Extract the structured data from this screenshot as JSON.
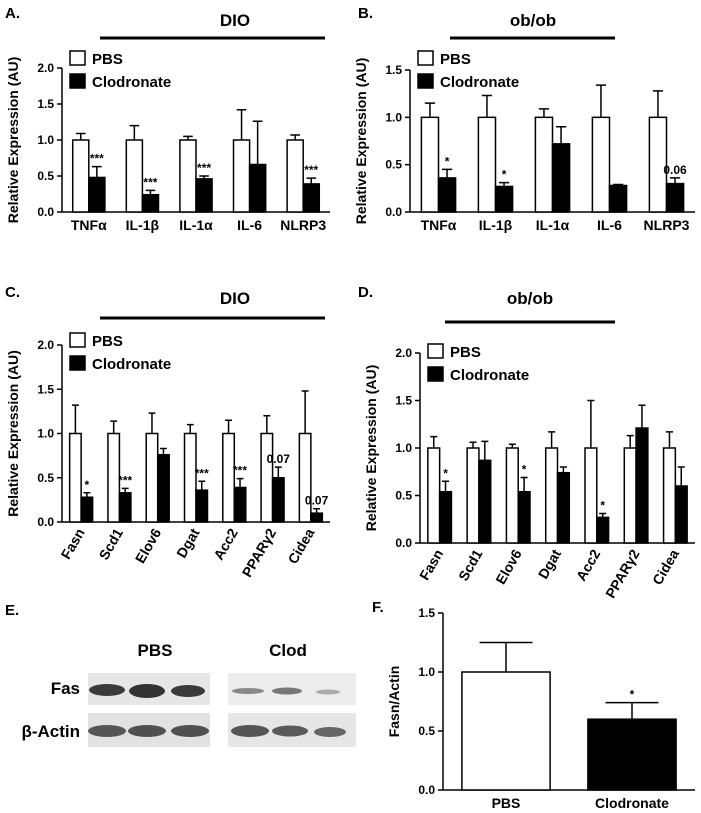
{
  "chart_data": [
    {
      "type": "bar",
      "panel_label": "A.",
      "title": "DIO",
      "y_label": "Relative Expression (AU)",
      "categories": [
        "TNFα",
        "IL-1β",
        "IL-1α",
        "IL-6",
        "NLRP3"
      ],
      "series": [
        {
          "name": "PBS",
          "color": "#ffffff",
          "values": [
            1,
            1,
            1,
            1,
            1
          ],
          "errors": [
            0.09,
            0.2,
            0.05,
            0.42,
            0.07
          ]
        },
        {
          "name": "Clodronate",
          "color": "#000000",
          "values": [
            0.48,
            0.24,
            0.46,
            0.66,
            0.39
          ],
          "errors": [
            0.15,
            0.06,
            0.04,
            0.6,
            0.08
          ],
          "annotations": [
            "***",
            "***",
            "***",
            null,
            "***"
          ]
        }
      ],
      "ylim": [
        0,
        2
      ],
      "yticks": [
        {
          "value": 0,
          "label": "0.0"
        },
        0.5,
        {
          "value": 1,
          "label": "1.0"
        },
        1.5,
        {
          "value": 2,
          "label": "2.0"
        }
      ],
      "legend": "upper left"
    },
    {
      "type": "bar",
      "panel_label": "B.",
      "title": "ob/ob",
      "y_label": "Relative Expression (AU)",
      "categories": [
        "TNFα",
        "IL-1β",
        "IL-1α",
        "IL-6",
        "NLRP3"
      ],
      "series": [
        {
          "name": "PBS",
          "color": "#ffffff",
          "values": [
            1,
            1,
            1,
            1,
            1
          ],
          "errors": [
            0.15,
            0.23,
            0.09,
            0.34,
            0.28
          ]
        },
        {
          "name": "Clodronate",
          "color": "#000000",
          "values": [
            0.36,
            0.27,
            0.72,
            0.28,
            0.3
          ],
          "errors": [
            0.09,
            0.04,
            0.18,
            0.01,
            0.06
          ],
          "annotations": [
            "*",
            "*",
            null,
            null,
            "0.06"
          ]
        }
      ],
      "ylim": [
        0,
        1.5
      ],
      "yticks": [
        {
          "value": 0,
          "label": "0.0"
        },
        0.5,
        {
          "value": 1,
          "label": "1.0"
        },
        1.5
      ],
      "legend": "upper left"
    },
    {
      "type": "bar",
      "panel_label": "C.",
      "title": "DIO",
      "y_label": "Relative Expression (AU)",
      "categories": [
        "Fasn",
        "Scd1",
        "Elov6",
        "Dgat",
        "Acc2",
        "PPARγ2",
        "Cidea"
      ],
      "series": [
        {
          "name": "PBS",
          "color": "#ffffff",
          "values": [
            1,
            1,
            1,
            1,
            1,
            1,
            1
          ],
          "errors": [
            0.32,
            0.14,
            0.23,
            0.1,
            0.15,
            0.2,
            0.48
          ]
        },
        {
          "name": "Clodronate",
          "color": "#000000",
          "values": [
            0.28,
            0.33,
            0.76,
            0.36,
            0.39,
            0.5,
            0.1
          ],
          "errors": [
            0.05,
            0.05,
            0.07,
            0.1,
            0.1,
            0.12,
            0.05
          ],
          "annotations": [
            "*",
            "***",
            null,
            "***",
            "***",
            "0.07",
            "0.07"
          ]
        }
      ],
      "ylim": [
        0,
        2
      ],
      "yticks": [
        {
          "value": 0,
          "label": "0.0"
        },
        0.5,
        {
          "value": 1,
          "label": "1.0"
        },
        1.5,
        {
          "value": 2,
          "label": "2.0"
        }
      ],
      "legend": "upper left"
    },
    {
      "type": "bar",
      "panel_label": "D.",
      "title": "ob/ob",
      "y_label": "Relative Expression (AU)",
      "categories": [
        "Fasn",
        "Scd1",
        "Elov6",
        "Dgat",
        "Acc2",
        "PPARγ2",
        "Cidea"
      ],
      "series": [
        {
          "name": "PBS",
          "color": "#ffffff",
          "values": [
            1,
            1,
            1,
            1,
            1,
            1,
            1
          ],
          "errors": [
            0.12,
            0.06,
            0.04,
            0.17,
            0.5,
            0.13,
            0.17
          ]
        },
        {
          "name": "Clodronate",
          "color": "#000000",
          "values": [
            0.54,
            0.87,
            0.54,
            0.74,
            0.27,
            1.21,
            0.6
          ],
          "errors": [
            0.11,
            0.2,
            0.15,
            0.06,
            0.04,
            0.24,
            0.2
          ],
          "annotations": [
            "*",
            null,
            "*",
            null,
            "*",
            null,
            null
          ]
        }
      ],
      "ylim": [
        0,
        2
      ],
      "yticks": [
        {
          "value": 0,
          "label": "0.0"
        },
        0.5,
        {
          "value": 1,
          "label": "1.0"
        },
        1.5,
        {
          "value": 2,
          "label": "2.0"
        }
      ],
      "legend": "upper left"
    },
    {
      "type": "bar",
      "panel_label": "F.",
      "y_label": "Fasn/Actin",
      "categories": [
        "PBS",
        "Clodronate"
      ],
      "values": [
        1,
        0.6
      ],
      "errors": [
        0.25,
        0.14
      ],
      "colors": [
        "#ffffff",
        "#000000"
      ],
      "annotations": [
        null,
        "*"
      ],
      "ylim": [
        0,
        1.5
      ],
      "yticks": [
        {
          "value": 0,
          "label": "0.0"
        },
        0.5,
        {
          "value": 1,
          "label": "1.0"
        },
        1.5
      ]
    }
  ],
  "blot": {
    "label": "E.",
    "groups": [
      "PBS",
      "Clod"
    ],
    "rows": [
      "Fas",
      "β-Actin"
    ]
  }
}
